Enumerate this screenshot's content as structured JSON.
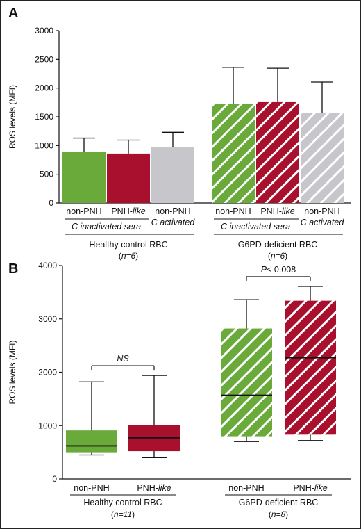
{
  "colors": {
    "green": "#6aaa3a",
    "red": "#a8102e",
    "gray": "#c6c6cb",
    "axis": "#111111"
  },
  "chart_data": [
    {
      "panel": "A",
      "type": "bar",
      "ylabel": "ROS levels (MFI)",
      "ylim": [
        0,
        3000
      ],
      "yticks": [
        0,
        500,
        1000,
        1500,
        2000,
        2500,
        3000
      ],
      "groups": [
        {
          "label": "Healthy control RBC",
          "n": "(n=6)",
          "sublabels": [
            "C inactivated sera",
            "C activated"
          ],
          "bars": [
            {
              "label": "non-PNH",
              "value": 890,
              "error": 240,
              "color": "green",
              "pattern": "solid"
            },
            {
              "label": "PNH-like",
              "value": 860,
              "error": 235,
              "color": "red",
              "pattern": "solid"
            },
            {
              "label": "non-PNH",
              "value": 975,
              "error": 255,
              "color": "gray",
              "pattern": "solid"
            }
          ]
        },
        {
          "label": "G6PD-deficient RBC",
          "n": "(n=6)",
          "sublabels": [
            "C inactivated sera",
            "C activated"
          ],
          "bars": [
            {
              "label": "non-PNH",
              "value": 1730,
              "error": 630,
              "color": "green",
              "pattern": "hatched"
            },
            {
              "label": "PNH-like",
              "value": 1755,
              "error": 590,
              "color": "red",
              "pattern": "hatched"
            },
            {
              "label": "non-PNH",
              "value": 1570,
              "error": 535,
              "color": "gray",
              "pattern": "hatched"
            }
          ]
        }
      ]
    },
    {
      "panel": "B",
      "type": "box",
      "ylabel": "ROS levels (MFI)",
      "ylim": [
        0,
        4000
      ],
      "yticks": [
        0,
        1000,
        2000,
        3000,
        4000
      ],
      "groups": [
        {
          "label": "Healthy control RBC",
          "n": "(n=11)",
          "comparison": "NS",
          "boxes": [
            {
              "label": "non-PNH",
              "min": 450,
              "q1": 500,
              "median": 620,
              "q3": 910,
              "max": 1820,
              "color": "green",
              "pattern": "solid"
            },
            {
              "label": "PNH-like",
              "min": 400,
              "q1": 520,
              "median": 770,
              "q3": 1010,
              "max": 1940,
              "color": "red",
              "pattern": "solid"
            }
          ]
        },
        {
          "label": "G6PD-deficient RBC",
          "n": "(n=8)",
          "comparison": "P< 0.008",
          "boxes": [
            {
              "label": "non-PNH",
              "min": 700,
              "q1": 800,
              "median": 1570,
              "q3": 2820,
              "max": 3360,
              "color": "green",
              "pattern": "hatched"
            },
            {
              "label": "PNH-like",
              "min": 720,
              "q1": 830,
              "median": 2270,
              "q3": 3340,
              "max": 3610,
              "color": "red",
              "pattern": "hatched"
            }
          ]
        }
      ]
    }
  ]
}
